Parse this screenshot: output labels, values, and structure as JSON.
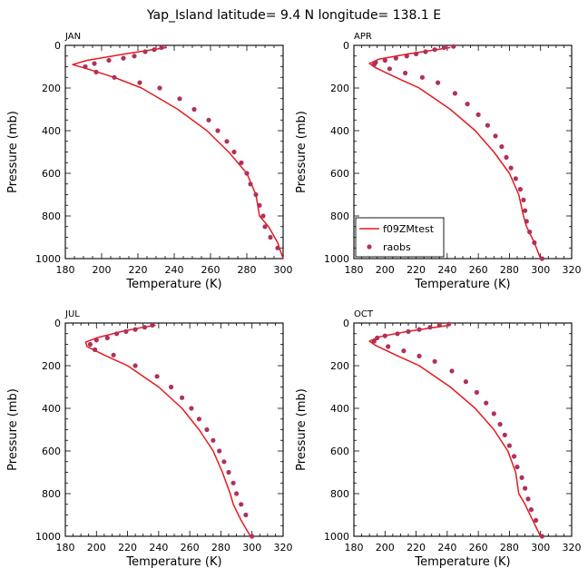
{
  "title": "Yap_Island  latitude= 9.4 N longitude= 138.1 E",
  "colors": {
    "model": "#e41a1c",
    "obs": "#b0305c",
    "axis": "#000000"
  },
  "legend": {
    "model_label": "f09ZMtest",
    "obs_label": "raobs"
  },
  "chart_data": [
    {
      "type": "line",
      "title": "JAN",
      "xlabel": "Temperature (K)",
      "ylabel": "Pressure (mb)",
      "xlim": [
        180,
        300
      ],
      "ylim": [
        1000,
        0
      ],
      "xticks": [
        180,
        200,
        220,
        240,
        260,
        280,
        300
      ],
      "yticks": [
        0,
        200,
        400,
        600,
        800,
        1000
      ],
      "series": [
        {
          "name": "f09ZMtest",
          "kind": "line",
          "x": [
            236,
            228,
            213,
            192,
            184,
            192,
            207,
            222,
            242,
            258,
            270,
            280,
            285,
            287,
            292,
            297,
            300
          ],
          "y": [
            10,
            20,
            40,
            70,
            90,
            110,
            150,
            200,
            300,
            400,
            500,
            600,
            700,
            800,
            850,
            925,
            1000
          ]
        },
        {
          "name": "raobs",
          "kind": "scatter",
          "x": [
            233,
            229,
            224,
            218,
            212,
            204,
            196,
            191,
            197,
            207,
            221,
            232,
            243,
            251,
            259,
            264,
            269,
            273,
            277,
            280,
            282,
            285,
            287,
            289,
            290,
            293,
            297
          ],
          "y": [
            10,
            20,
            30,
            50,
            60,
            70,
            85,
            100,
            125,
            150,
            175,
            200,
            250,
            300,
            350,
            400,
            450,
            500,
            550,
            600,
            650,
            700,
            750,
            800,
            850,
            900,
            950
          ]
        }
      ]
    },
    {
      "type": "line",
      "title": "APR",
      "xlabel": "Temperature (K)",
      "ylabel": "Pressure (mb)",
      "xlim": [
        180,
        320
      ],
      "ylim": [
        1000,
        0
      ],
      "xticks": [
        180,
        200,
        220,
        240,
        260,
        280,
        300,
        320
      ],
      "yticks": [
        0,
        200,
        400,
        600,
        800,
        1000
      ],
      "legend_position": "bottom-left",
      "series": [
        {
          "name": "f09ZMtest",
          "kind": "line",
          "x": [
            242,
            233,
            215,
            196,
            190,
            194,
            207,
            222,
            242,
            258,
            270,
            280,
            286,
            289,
            291,
            296,
            300
          ],
          "y": [
            10,
            20,
            40,
            65,
            85,
            105,
            150,
            200,
            300,
            400,
            500,
            600,
            700,
            800,
            850,
            925,
            1000
          ]
        },
        {
          "name": "raobs",
          "kind": "scatter",
          "x": [
            244,
            238,
            232,
            226,
            220,
            214,
            207,
            200,
            194,
            193,
            203,
            213,
            224,
            234,
            245,
            253,
            260,
            266,
            271,
            275,
            278,
            281,
            284,
            287,
            289,
            290,
            291,
            293,
            296,
            301
          ],
          "y": [
            5,
            10,
            20,
            30,
            40,
            50,
            60,
            70,
            80,
            90,
            110,
            130,
            150,
            175,
            225,
            275,
            325,
            375,
            425,
            475,
            525,
            575,
            625,
            675,
            725,
            775,
            825,
            875,
            925,
            1000
          ]
        }
      ]
    },
    {
      "type": "line",
      "title": "JUL",
      "xlabel": "Temperature (K)",
      "ylabel": "Pressure (mb)",
      "xlim": [
        180,
        320
      ],
      "ylim": [
        1000,
        0
      ],
      "xticks": [
        180,
        200,
        220,
        240,
        260,
        280,
        300,
        320
      ],
      "yticks": [
        0,
        200,
        400,
        600,
        800,
        1000
      ],
      "series": [
        {
          "name": "f09ZMtest",
          "kind": "line",
          "x": [
            238,
            230,
            216,
            200,
            193,
            194,
            205,
            220,
            240,
            255,
            266,
            275,
            281,
            286,
            288,
            293,
            299
          ],
          "y": [
            10,
            20,
            40,
            70,
            90,
            110,
            150,
            200,
            300,
            400,
            500,
            600,
            700,
            800,
            850,
            925,
            1000
          ]
        },
        {
          "name": "raobs",
          "kind": "scatter",
          "x": [
            236,
            231,
            225,
            219,
            213,
            207,
            200,
            196,
            199,
            211,
            225,
            239,
            248,
            255,
            261,
            266,
            271,
            275,
            279,
            282,
            285,
            288,
            290,
            293,
            296,
            300
          ],
          "y": [
            10,
            20,
            30,
            40,
            50,
            70,
            80,
            100,
            125,
            150,
            200,
            250,
            300,
            350,
            400,
            450,
            500,
            550,
            600,
            650,
            700,
            750,
            800,
            850,
            900,
            1000
          ]
        }
      ]
    },
    {
      "type": "line",
      "title": "OCT",
      "xlabel": "Temperature (K)",
      "ylabel": "Pressure (mb)",
      "xlim": [
        180,
        320
      ],
      "ylim": [
        1000,
        0
      ],
      "xticks": [
        180,
        200,
        220,
        240,
        260,
        280,
        300,
        320
      ],
      "yticks": [
        0,
        200,
        400,
        600,
        800,
        1000
      ],
      "series": [
        {
          "name": "f09ZMtest",
          "kind": "line",
          "x": [
            242,
            232,
            214,
            196,
            190,
            194,
            207,
            222,
            242,
            258,
            270,
            279,
            284,
            286,
            290,
            295,
            300
          ],
          "y": [
            10,
            20,
            40,
            65,
            85,
            105,
            150,
            200,
            300,
            400,
            500,
            600,
            700,
            800,
            850,
            925,
            1000
          ]
        },
        {
          "name": "raobs",
          "kind": "scatter",
          "x": [
            241,
            235,
            229,
            222,
            215,
            208,
            200,
            195,
            193,
            202,
            212,
            222,
            232,
            243,
            252,
            259,
            265,
            270,
            274,
            277,
            280,
            283,
            285,
            288,
            290,
            292,
            294,
            297,
            301
          ],
          "y": [
            5,
            10,
            20,
            30,
            40,
            50,
            60,
            70,
            85,
            110,
            130,
            155,
            180,
            225,
            275,
            325,
            375,
            425,
            475,
            525,
            575,
            625,
            675,
            725,
            775,
            825,
            875,
            925,
            1000
          ]
        }
      ]
    }
  ]
}
